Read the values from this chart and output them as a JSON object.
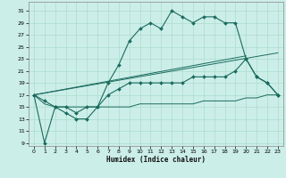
{
  "title": "",
  "xlabel": "Humidex (Indice chaleur)",
  "bg_color": "#cceee8",
  "line_color": "#1a6b5e",
  "grid_color": "#aaddcc",
  "x_ticks": [
    0,
    1,
    2,
    3,
    4,
    5,
    6,
    7,
    8,
    9,
    10,
    11,
    12,
    13,
    14,
    15,
    16,
    17,
    18,
    19,
    20,
    21,
    22,
    23
  ],
  "y_ticks": [
    9,
    11,
    13,
    15,
    17,
    19,
    21,
    23,
    25,
    27,
    29,
    31
  ],
  "xlim": [
    -0.5,
    23.5
  ],
  "ylim": [
    8.5,
    32.5
  ],
  "line1_x": [
    0,
    1,
    2,
    3,
    4,
    5,
    6,
    7,
    8,
    9,
    10,
    11,
    12,
    13,
    14,
    15,
    16,
    17,
    18,
    19,
    20,
    21,
    22,
    23
  ],
  "line1_y": [
    17,
    16,
    15,
    15,
    14,
    15,
    15,
    19,
    22,
    26,
    28,
    29,
    28,
    31,
    30,
    29,
    30,
    30,
    29,
    29,
    23,
    20,
    19,
    17
  ],
  "line2_x": [
    0,
    1,
    2,
    3,
    4,
    5,
    6,
    7,
    8,
    9,
    10,
    11,
    12,
    13,
    14,
    15,
    16,
    17,
    18,
    19,
    20,
    21,
    22,
    23
  ],
  "line2_y": [
    17,
    9,
    15,
    14,
    13,
    13,
    15,
    17,
    18,
    19,
    19,
    19,
    19,
    19,
    19,
    20,
    20,
    20,
    20,
    21,
    23,
    20,
    19,
    17
  ],
  "line3_x": [
    0,
    1,
    2,
    3,
    4,
    5,
    6,
    7,
    8,
    9,
    10,
    11,
    12,
    13,
    14,
    15,
    16,
    17,
    18,
    19,
    20,
    21,
    22,
    23
  ],
  "line3_y": [
    17,
    15.5,
    15,
    15,
    15,
    15,
    15,
    15,
    15,
    15,
    15.5,
    15.5,
    15.5,
    15.5,
    15.5,
    15.5,
    16,
    16,
    16,
    16,
    16.5,
    16.5,
    17,
    17
  ],
  "line4_x": [
    0,
    20
  ],
  "line4_y": [
    17,
    23.5
  ],
  "line5_x": [
    0,
    23
  ],
  "line5_y": [
    17,
    24
  ]
}
